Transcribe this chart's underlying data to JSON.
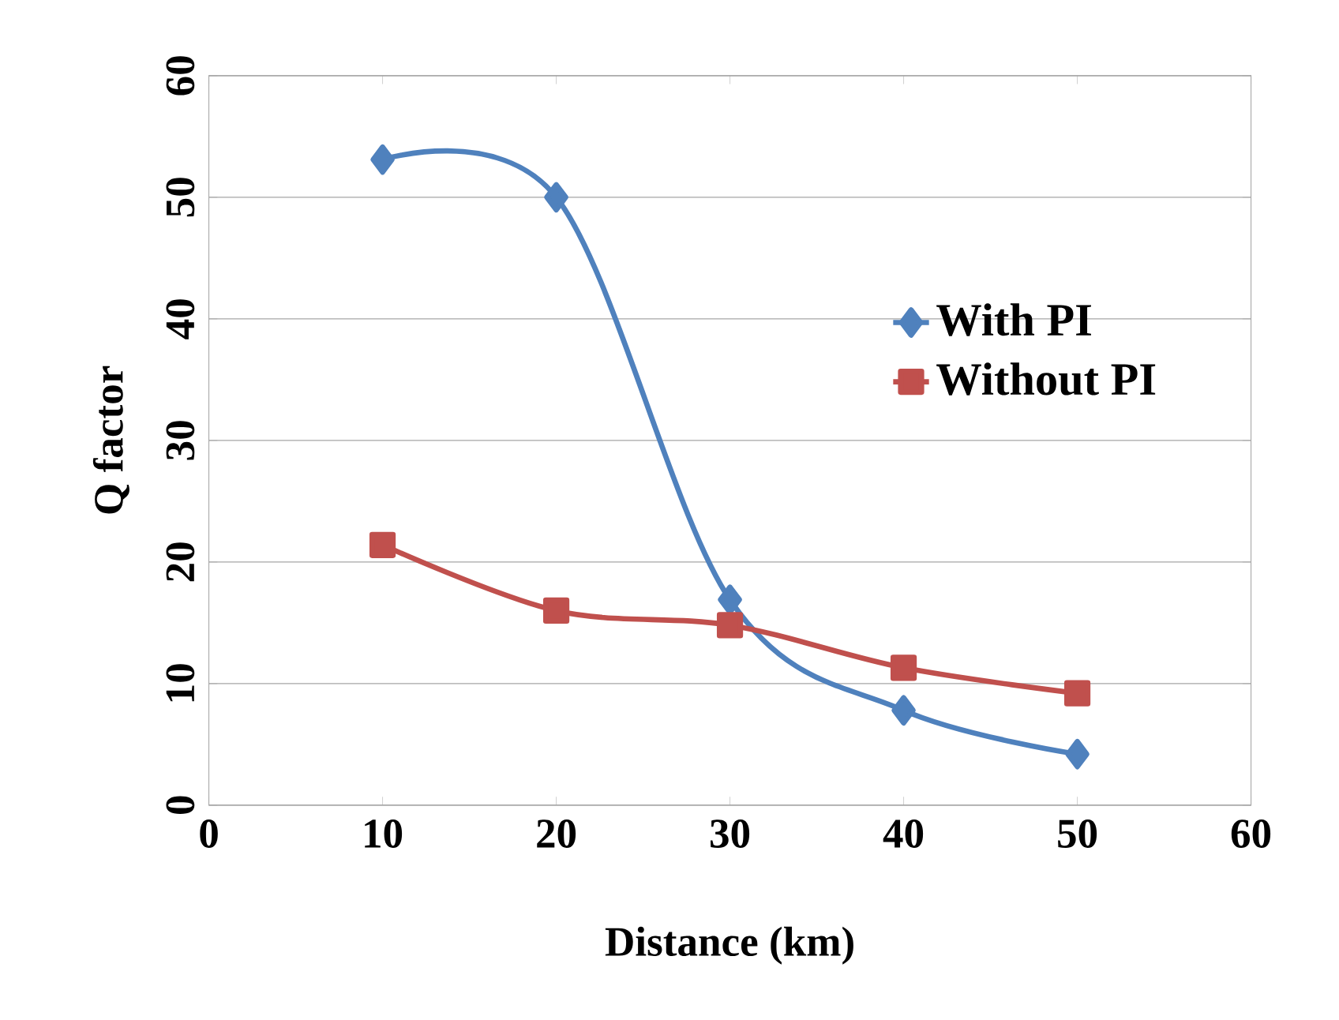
{
  "chart_data": {
    "type": "line",
    "xlabel": "Distance (km)",
    "ylabel": "Q factor",
    "x": [
      10,
      20,
      30,
      40,
      50
    ],
    "series": [
      {
        "name": "With PI",
        "color": "#4f81bd",
        "marker": "diamond",
        "values": [
          53.1,
          50,
          16.9,
          7.8,
          4.2
        ]
      },
      {
        "name": "Without PI",
        "color": "#c0504d",
        "marker": "square",
        "values": [
          21.4,
          16,
          14.8,
          11.3,
          9.2
        ]
      }
    ],
    "xlim": [
      0,
      60
    ],
    "ylim": [
      0,
      60
    ],
    "xticks": [
      0,
      10,
      20,
      30,
      40,
      50,
      60
    ],
    "yticks": [
      0,
      10,
      20,
      30,
      40,
      50,
      60
    ],
    "grid": "y",
    "legend": "right",
    "line_style": "solid"
  }
}
